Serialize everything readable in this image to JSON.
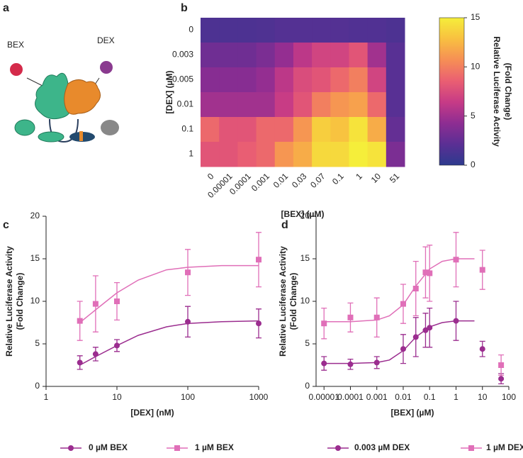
{
  "panel_labels": [
    "a",
    "b",
    "c",
    "d"
  ],
  "illustration": {
    "labels": [
      "BEX",
      "DEX"
    ]
  },
  "chart_data": [
    {
      "type": "heatmap",
      "categories": [
        "0",
        "0.00001",
        "0.0001",
        "0.001",
        "0.01",
        "0.03",
        "0.07",
        "0.1",
        "1",
        "10",
        "51"
      ],
      "rows": [
        "0",
        "0.003",
        "0.005",
        "0.01",
        "0.1",
        "1"
      ],
      "values": [
        [
          1.5,
          1.5,
          1.5,
          1.6,
          1.8,
          1.8,
          1.8,
          1.8,
          1.7,
          1.7,
          1.5
        ],
        [
          3,
          3,
          3,
          3.5,
          4.5,
          6,
          7,
          7,
          8,
          5,
          2
        ],
        [
          4,
          4,
          4,
          4.5,
          6,
          7.5,
          8,
          9,
          10,
          7,
          2
        ],
        [
          5,
          5,
          5,
          5,
          6.5,
          8,
          10,
          11,
          11.5,
          9,
          2
        ],
        [
          9,
          8,
          8,
          9,
          9,
          11,
          13.5,
          13,
          14.5,
          12,
          2.5
        ],
        [
          8,
          8,
          8.5,
          9,
          11,
          12,
          14,
          14,
          15,
          14.5,
          3.5
        ]
      ],
      "xlabel": "[BEX] (µM)",
      "ylabel": "[DEX] (µM)",
      "colorbar_label": [
        "Relative Luciferase Activity",
        "(Fold Change)"
      ],
      "zlim": [
        0,
        15
      ],
      "zticks": [
        0,
        5,
        10,
        15
      ],
      "colorscale": [
        "#2d3a8e",
        "#5b2f94",
        "#8e2d92",
        "#c73b86",
        "#ea5f72",
        "#f68f55",
        "#f8c040",
        "#f5ee3a"
      ]
    },
    {
      "type": "scatter",
      "log_x": true,
      "xlabel": "[DEX] (nM)",
      "ylabel": [
        "Relative Luciferase Activity",
        "(Fold Change)"
      ],
      "xlim": [
        1,
        1000
      ],
      "xticks": [
        1,
        10,
        100,
        1000
      ],
      "ylim": [
        0,
        20
      ],
      "yticks": [
        0,
        5,
        10,
        15,
        20
      ],
      "series": [
        {
          "name": "0 µM BEX",
          "color": "#9b2d8f",
          "marker": "circle",
          "x": [
            3,
            5,
            10,
            100,
            1000
          ],
          "values": [
            2.8,
            3.8,
            4.8,
            7.6,
            7.4
          ],
          "errors": [
            0.8,
            0.8,
            0.7,
            1.8,
            1.7
          ],
          "fit": {
            "x": [
              3,
              5,
              10,
              20,
              50,
              100,
              300,
              1000
            ],
            "values": [
              2.5,
              3.5,
              4.8,
              6,
              7,
              7.4,
              7.6,
              7.7
            ]
          }
        },
        {
          "name": "1 µM BEX",
          "color": "#e06fb8",
          "marker": "square",
          "x": [
            3,
            5,
            10,
            100,
            1000
          ],
          "values": [
            7.7,
            9.7,
            10,
            13.4,
            14.9
          ],
          "errors": [
            2.3,
            3.3,
            2.2,
            2.7,
            3.2
          ],
          "fit": {
            "x": [
              3,
              5,
              10,
              20,
              50,
              100,
              300,
              1000
            ],
            "values": [
              7.5,
              9,
              11,
              12.5,
              13.7,
              14,
              14.2,
              14.2
            ]
          }
        }
      ]
    },
    {
      "type": "scatter",
      "log_x": true,
      "xlabel": "[BEX] (µM)",
      "ylabel": [
        "Relative Luciferase Activity",
        "(Fold Change)"
      ],
      "xlim": [
        5e-06,
        100
      ],
      "xticks": [
        1e-05,
        0.0001,
        0.001,
        0.01,
        0.1,
        1,
        10,
        100
      ],
      "ylim": [
        0,
        20
      ],
      "yticks": [
        0,
        5,
        10,
        15,
        20
      ],
      "series": [
        {
          "name": "0.003 µM DEX",
          "color": "#9b2d8f",
          "marker": "circle",
          "x": [
            1e-05,
            0.0001,
            0.001,
            0.01,
            0.03,
            0.07,
            0.1,
            1,
            10,
            51
          ],
          "values": [
            2.7,
            2.6,
            2.8,
            4.4,
            5.8,
            6.6,
            6.9,
            7.7,
            4.4,
            0.9
          ],
          "errors": [
            0.8,
            0.6,
            0.7,
            1.7,
            2.3,
            2,
            2.3,
            2.3,
            0.9,
            0.6
          ],
          "fit": {
            "x": [
              1e-05,
              0.0001,
              0.001,
              0.003,
              0.01,
              0.03,
              0.1,
              0.3,
              1,
              5
            ],
            "values": [
              2.7,
              2.7,
              2.8,
              3.1,
              4.2,
              5.8,
              7,
              7.5,
              7.7,
              7.7
            ]
          }
        },
        {
          "name": "1 µM DEX",
          "color": "#e06fb8",
          "marker": "square",
          "x": [
            1e-05,
            0.0001,
            0.001,
            0.01,
            0.03,
            0.07,
            0.1,
            1,
            10,
            51
          ],
          "values": [
            7.4,
            8.1,
            8.1,
            9.7,
            11.5,
            13.4,
            13.3,
            14.9,
            13.7,
            2.5
          ],
          "errors": [
            1.8,
            1.7,
            2.3,
            2.3,
            3.2,
            3,
            3.3,
            3.2,
            2.3,
            1.2
          ],
          "fit": {
            "x": [
              1e-05,
              0.0001,
              0.001,
              0.003,
              0.01,
              0.03,
              0.1,
              0.3,
              1,
              5
            ],
            "values": [
              7.6,
              7.6,
              7.8,
              8.3,
              9.6,
              11.8,
              13.8,
              14.7,
              15,
              15
            ]
          }
        }
      ]
    }
  ]
}
